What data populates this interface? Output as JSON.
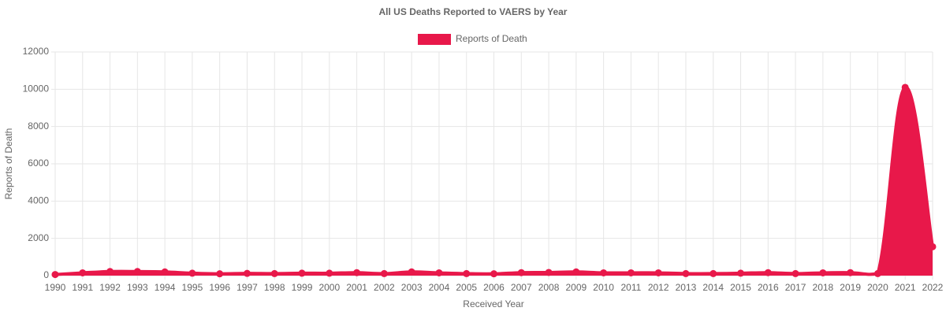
{
  "chart_data": {
    "type": "line",
    "fill": true,
    "smooth": true,
    "title": "All US Deaths Reported to VAERS by Year",
    "x_label": "Received Year",
    "y_label": "Reports of Death",
    "categories": [
      "1990",
      "1991",
      "1992",
      "1993",
      "1994",
      "1995",
      "1996",
      "1997",
      "1998",
      "1999",
      "2000",
      "2001",
      "2002",
      "2003",
      "2004",
      "2005",
      "2006",
      "2007",
      "2008",
      "2009",
      "2010",
      "2011",
      "2012",
      "2013",
      "2014",
      "2015",
      "2016",
      "2017",
      "2018",
      "2019",
      "2020",
      "2021",
      "2022"
    ],
    "series": [
      {
        "name": "Reports of Death",
        "color": "#e8184a",
        "values": [
          60,
          150,
          220,
          220,
          200,
          130,
          100,
          120,
          110,
          130,
          130,
          160,
          110,
          200,
          150,
          110,
          100,
          160,
          170,
          200,
          150,
          150,
          150,
          110,
          110,
          130,
          160,
          110,
          150,
          160,
          110,
          10100,
          1550
        ]
      }
    ],
    "ylim": [
      0,
      12000
    ],
    "yticks": [
      0,
      2000,
      4000,
      6000,
      8000,
      10000,
      12000
    ],
    "grid": true,
    "legend": "top"
  }
}
